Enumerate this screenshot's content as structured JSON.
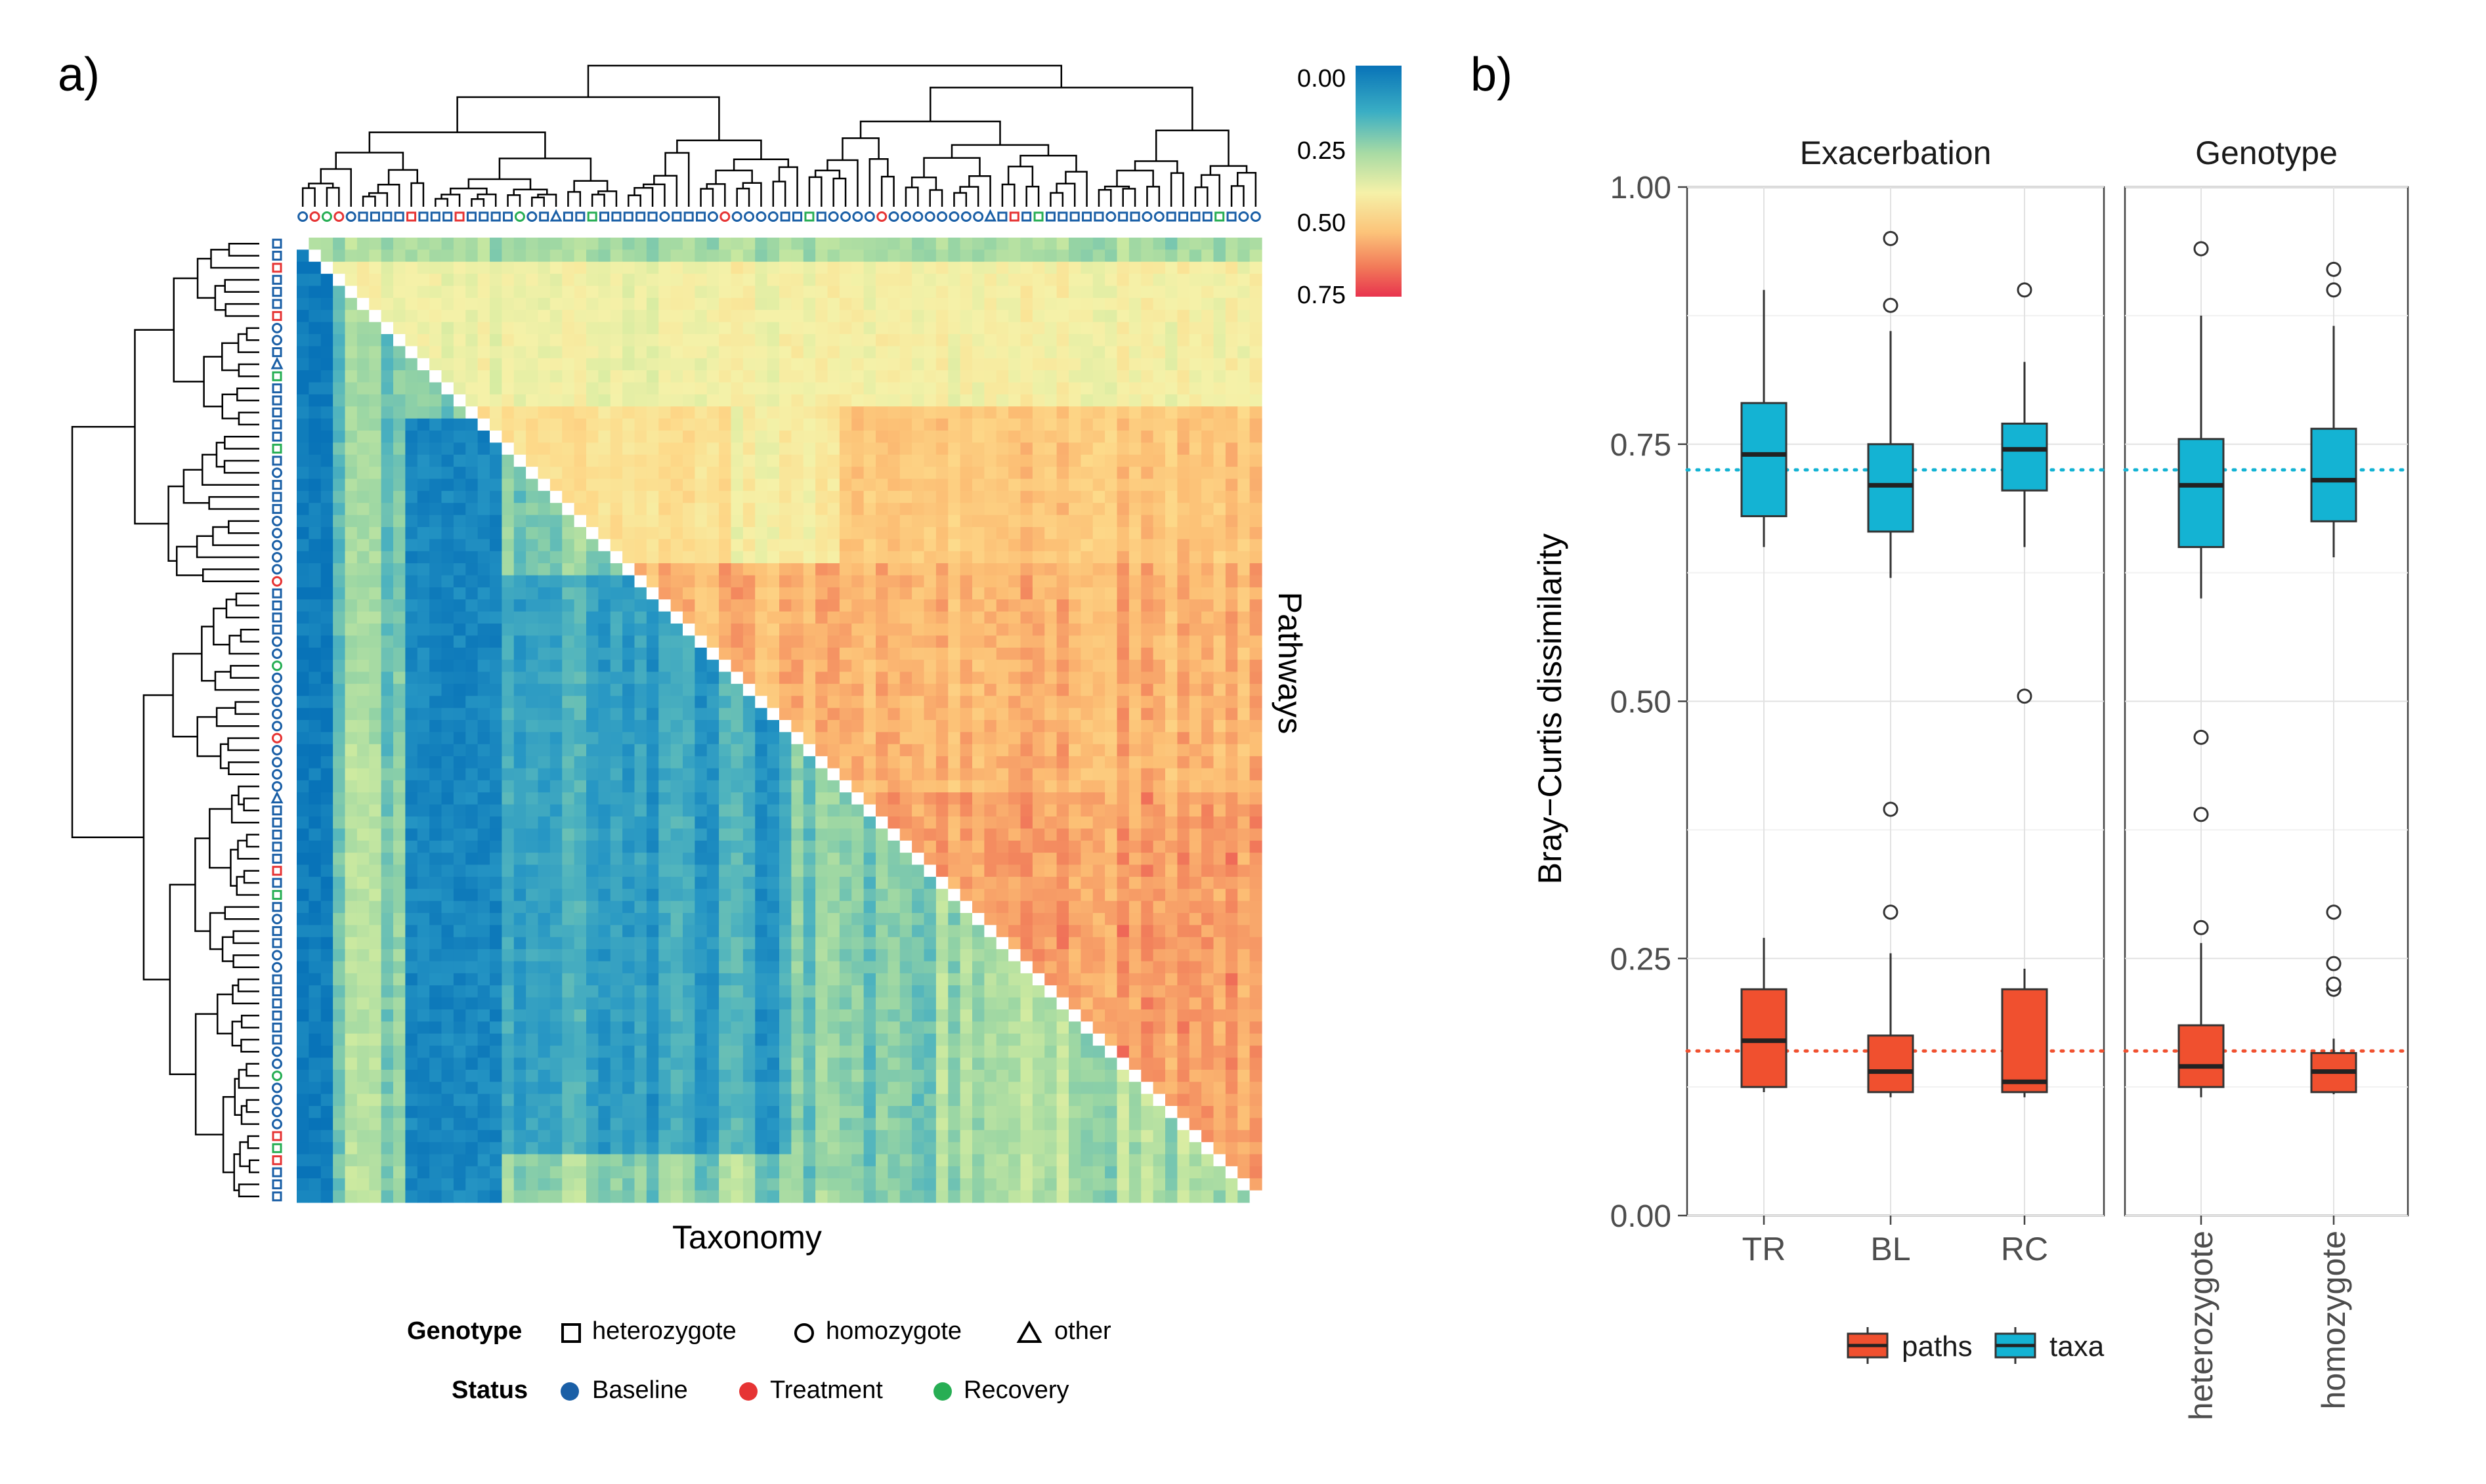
{
  "panel_a": {
    "label": "a)",
    "row_axis_label": "Pathways",
    "col_axis_label": "Taxonomy",
    "colorbar": {
      "ticks": [
        "0.00",
        "0.25",
        "0.50",
        "0.75"
      ],
      "stops": [
        "#0873b8",
        "#3aaec4",
        "#a8dba4",
        "#f5f1a8",
        "#fcc47a",
        "#f27b59",
        "#e8344e"
      ]
    },
    "legend": {
      "genotype_title": "Genotype",
      "genotype_items": [
        {
          "label": "heterozygote",
          "shape": "square"
        },
        {
          "label": "homozygote",
          "shape": "circle"
        },
        {
          "label": "other",
          "shape": "triangle"
        }
      ],
      "status_title": "Status",
      "status_items": [
        {
          "label": "Baseline",
          "color": "#1a5fa6"
        },
        {
          "label": "Treatment",
          "color": "#e63434"
        },
        {
          "label": "Recovery",
          "color": "#27ae54"
        }
      ]
    }
  },
  "chart_data": [
    {
      "type": "heatmap",
      "title": "",
      "xlabel": "Taxonomy",
      "ylabel": "Pathways",
      "value_range": [
        0,
        0.75
      ],
      "n_samples": 80,
      "description_blocks": {
        "lower_triangle": "taxonomy dissimilarity, mostly 0.00-0.40 (blue/green)",
        "upper_triangle": "pathway dissimilarity, mostly 0.30-0.75 (yellow/red)"
      },
      "status_sequence": "BRGRBBBBBRBBBRBBBBGBBBBBGBBBBBBBBBBRBBBBBBGBBBBBRBBBBBBBBBBRBGBBBBBBBBBBBBBBGB",
      "genotype_sequence": "OOOOOSSSSSSSSSSSSSOOSTSSSSSSSSOSSSOOOOOOSSSSOOOOOOOOOOOOOTSSSSSSSSSOSSOOSSSSSSOO"
    },
    {
      "type": "box",
      "title": "",
      "xlabel": "",
      "ylabel": "Bray−Curtis dissimilarity",
      "ylim": [
        0,
        1
      ],
      "yticks": [
        "0.00",
        "0.25",
        "0.50",
        "0.75",
        "1.00"
      ],
      "facets": [
        {
          "name": "Exacerbation",
          "categories": [
            "TR",
            "BL",
            "RC"
          ]
        },
        {
          "name": "Genotype",
          "categories": [
            "heterozygote",
            "homozygote"
          ]
        }
      ],
      "reference_lines": {
        "paths": 0.16,
        "taxa": 0.725
      },
      "series": [
        {
          "name": "paths",
          "color": "#f0502f",
          "boxes": [
            {
              "category": "TR",
              "min": 0.12,
              "q1": 0.125,
              "median": 0.17,
              "q3": 0.22,
              "max": 0.27,
              "outliers": []
            },
            {
              "category": "BL",
              "min": 0.115,
              "q1": 0.12,
              "median": 0.14,
              "q3": 0.175,
              "max": 0.255,
              "outliers": [
                0.295,
                0.395
              ]
            },
            {
              "category": "RC",
              "min": 0.115,
              "q1": 0.12,
              "median": 0.13,
              "q3": 0.22,
              "max": 0.24,
              "outliers": [
                0.505
              ]
            },
            {
              "category": "heterozygote",
              "min": 0.115,
              "q1": 0.125,
              "median": 0.145,
              "q3": 0.185,
              "max": 0.265,
              "outliers": [
                0.28,
                0.39,
                0.465
              ]
            },
            {
              "category": "homozygote",
              "min": 0.118,
              "q1": 0.12,
              "median": 0.14,
              "q3": 0.158,
              "max": 0.172,
              "outliers": [
                0.22,
                0.225,
                0.245,
                0.295
              ]
            }
          ]
        },
        {
          "name": "taxa",
          "color": "#14b3d3",
          "boxes": [
            {
              "category": "TR",
              "min": 0.65,
              "q1": 0.68,
              "median": 0.74,
              "q3": 0.79,
              "max": 0.9,
              "outliers": []
            },
            {
              "category": "BL",
              "min": 0.62,
              "q1": 0.665,
              "median": 0.71,
              "q3": 0.75,
              "max": 0.86,
              "outliers": [
                0.885,
                0.95
              ]
            },
            {
              "category": "RC",
              "min": 0.65,
              "q1": 0.705,
              "median": 0.745,
              "q3": 0.77,
              "max": 0.83,
              "outliers": [
                0.9
              ]
            },
            {
              "category": "heterozygote",
              "min": 0.6,
              "q1": 0.65,
              "median": 0.71,
              "q3": 0.755,
              "max": 0.875,
              "outliers": [
                0.94
              ]
            },
            {
              "category": "homozygote",
              "min": 0.64,
              "q1": 0.675,
              "median": 0.715,
              "q3": 0.765,
              "max": 0.865,
              "outliers": [
                0.9,
                0.92
              ]
            }
          ]
        }
      ],
      "legend": [
        "paths",
        "taxa"
      ]
    }
  ],
  "panel_b": {
    "label": "b)"
  }
}
